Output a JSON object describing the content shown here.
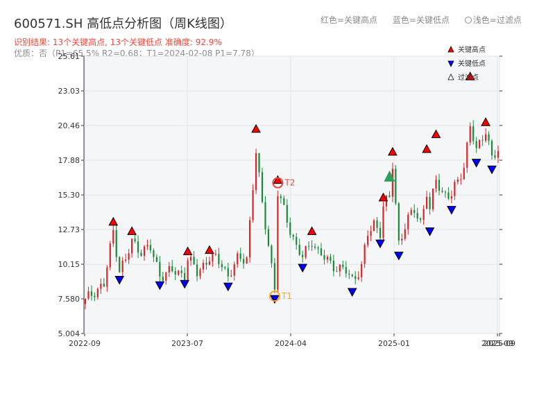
{
  "chart_data": {
    "type": "candlestick",
    "title": "600571.SH 高低点分析图（周K线图）",
    "subtitle_result": "识别结果: 13个关键高点, 13个关键低点  准确度: 92.9%",
    "subtitle_quality": "优质：否（P1=65.5%  R2=0.68；T1=2024-02-08 P1=7.78）",
    "top_legend": {
      "red": "红色=关键高点",
      "blue": "蓝色=关键低点",
      "light": "浅色=过滤点"
    },
    "legend": [
      "关键高点",
      "关键低点",
      "过滤点"
    ],
    "y_ticks": [
      "5.004",
      "7.580",
      "10.15",
      "12.73",
      "15.30",
      "17.88",
      "20.46",
      "23.03",
      "25.61"
    ],
    "ylim": [
      5.004,
      25.61
    ],
    "x_ticks": [
      "2022-09",
      "2023-07",
      "2024-04",
      "2025-01",
      "2025-09",
      "2025-09"
    ],
    "colors": {
      "up": "#d62728",
      "down": "#1a8a3a",
      "high_marker": "#ff0000",
      "low_marker": "#0000ff",
      "filtered": "#2e9e5a",
      "annotation": "#f5a623",
      "annotation_t2": "#e8493a"
    },
    "annotations": [
      {
        "label": "T1",
        "week": 61,
        "price": 7.78
      },
      {
        "label": "T2",
        "week": 62,
        "price": 16.2
      }
    ],
    "high_points": [
      {
        "week": 9,
        "price": 13.1
      },
      {
        "week": 15,
        "price": 12.4
      },
      {
        "week": 33,
        "price": 10.9
      },
      {
        "week": 40,
        "price": 11.0
      },
      {
        "week": 55,
        "price": 20.0
      },
      {
        "week": 62,
        "price": 16.2
      },
      {
        "week": 73,
        "price": 12.4
      },
      {
        "week": 96,
        "price": 14.9
      },
      {
        "week": 99,
        "price": 18.3
      },
      {
        "week": 110,
        "price": 18.5
      },
      {
        "week": 113,
        "price": 19.6
      },
      {
        "week": 124,
        "price": 23.9
      },
      {
        "week": 129,
        "price": 20.5
      }
    ],
    "low_points": [
      {
        "week": 11,
        "price": 9.2
      },
      {
        "week": 24,
        "price": 8.8
      },
      {
        "week": 32,
        "price": 8.9
      },
      {
        "week": 46,
        "price": 8.7
      },
      {
        "week": 61,
        "price": 7.78
      },
      {
        "week": 70,
        "price": 10.1
      },
      {
        "week": 86,
        "price": 8.3
      },
      {
        "week": 95,
        "price": 11.9
      },
      {
        "week": 101,
        "price": 11.0
      },
      {
        "week": 111,
        "price": 12.8
      },
      {
        "week": 118,
        "price": 14.4
      },
      {
        "week": 126,
        "price": 17.9
      },
      {
        "week": 131,
        "price": 17.4
      }
    ],
    "filtered_points": [
      {
        "week": 98,
        "price": 16.6
      }
    ],
    "candles": []
  }
}
